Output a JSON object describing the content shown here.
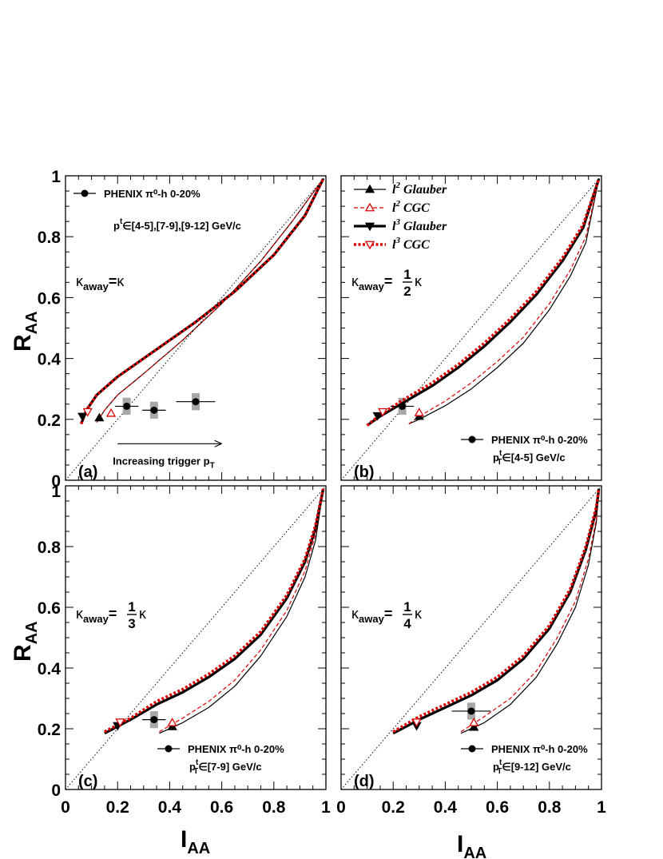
{
  "chart_data": [
    {
      "type": "line",
      "panel_label": "(a)",
      "kappa_text": "κ",
      "kappa_frac": null,
      "show_legend": false,
      "phenix_text": "PHENIX π⁰-h 0-20%",
      "pt_text": "∈[4-5],[7-9],[9-12] GeV/c",
      "arrow_text": "Increasing trigger p",
      "xlim": [
        0,
        1
      ],
      "ylim": [
        0,
        1
      ],
      "xticks": [
        "0",
        "0.2",
        "0.4",
        "0.6",
        "0.8",
        "1"
      ],
      "yticks": [
        "0",
        "0.2",
        "0.4",
        "0.6",
        "0.8",
        "1"
      ],
      "data_points": [
        {
          "x": 0.235,
          "y": 0.243,
          "xerr": 0.045,
          "yerr_sys": 0.028,
          "yerr_stat": 0.008
        },
        {
          "x": 0.34,
          "y": 0.23,
          "xerr": 0.045,
          "yerr_sys": 0.028,
          "yerr_stat": 0.008
        },
        {
          "x": 0.5,
          "y": 0.258,
          "xerr": 0.075,
          "yerr_sys": 0.028,
          "yerr_stat": 0.008
        }
      ],
      "series": [
        {
          "name": "l² Glauber",
          "x": [
            0.12,
            0.15,
            0.2,
            0.3,
            0.45,
            0.6,
            0.75,
            0.87,
            0.99
          ],
          "y": [
            0.19,
            0.23,
            0.28,
            0.35,
            0.46,
            0.58,
            0.72,
            0.85,
            0.99
          ],
          "marker_x": 0.13,
          "marker_y": 0.205
        },
        {
          "name": "l² CGC",
          "x": [
            0.12,
            0.15,
            0.2,
            0.3,
            0.45,
            0.6,
            0.75,
            0.87,
            0.99
          ],
          "y": [
            0.19,
            0.23,
            0.28,
            0.35,
            0.46,
            0.58,
            0.72,
            0.85,
            0.99
          ],
          "marker_x": 0.175,
          "marker_y": 0.22
        },
        {
          "name": "l³ Glauber",
          "x": [
            0.06,
            0.08,
            0.12,
            0.2,
            0.35,
            0.5,
            0.65,
            0.8,
            0.92,
            0.99
          ],
          "y": [
            0.185,
            0.23,
            0.28,
            0.34,
            0.43,
            0.52,
            0.62,
            0.74,
            0.87,
            0.99
          ],
          "marker_x": 0.065,
          "marker_y": 0.21
        },
        {
          "name": "l³ CGC",
          "x": [
            0.06,
            0.08,
            0.12,
            0.2,
            0.35,
            0.5,
            0.65,
            0.8,
            0.92,
            0.99
          ],
          "y": [
            0.185,
            0.23,
            0.28,
            0.34,
            0.43,
            0.52,
            0.62,
            0.74,
            0.87,
            0.99
          ],
          "marker_x": 0.085,
          "marker_y": 0.225
        }
      ]
    },
    {
      "type": "line",
      "panel_label": "(b)",
      "kappa_text": "κ",
      "kappa_frac": [
        "1",
        "2"
      ],
      "show_legend": true,
      "phenix_text": "PHENIX π⁰-h 0-20%",
      "pt_text": "∈[4-5] GeV/c",
      "arrow_text": "",
      "xlim": [
        0,
        1
      ],
      "ylim": [
        0,
        1
      ],
      "xticks": [
        "0",
        "0.2",
        "0.4",
        "0.6",
        "0.8",
        "1"
      ],
      "yticks": [
        "0",
        "0.2",
        "0.4",
        "0.6",
        "0.8",
        "1"
      ],
      "data_points": [
        {
          "x": 0.235,
          "y": 0.243,
          "xerr": 0.045,
          "yerr_sys": 0.028,
          "yerr_stat": 0.008
        }
      ],
      "series": [
        {
          "name": "l² Glauber",
          "x": [
            0.26,
            0.3,
            0.4,
            0.5,
            0.6,
            0.7,
            0.8,
            0.88,
            0.94,
            0.99
          ],
          "y": [
            0.185,
            0.2,
            0.245,
            0.3,
            0.37,
            0.45,
            0.56,
            0.67,
            0.78,
            0.99
          ],
          "marker_x": 0.3,
          "marker_y": 0.21
        },
        {
          "name": "l² CGC",
          "x": [
            0.26,
            0.3,
            0.4,
            0.5,
            0.6,
            0.7,
            0.8,
            0.88,
            0.94,
            0.99
          ],
          "y": [
            0.185,
            0.21,
            0.26,
            0.32,
            0.39,
            0.47,
            0.58,
            0.69,
            0.8,
            0.99
          ],
          "marker_x": 0.3,
          "marker_y": 0.222
        },
        {
          "name": "l³ Glauber",
          "x": [
            0.1,
            0.15,
            0.25,
            0.35,
            0.45,
            0.55,
            0.65,
            0.75,
            0.85,
            0.93,
            0.99
          ],
          "y": [
            0.18,
            0.21,
            0.26,
            0.31,
            0.37,
            0.44,
            0.52,
            0.61,
            0.72,
            0.83,
            0.99
          ],
          "marker_x": 0.14,
          "marker_y": 0.212
        },
        {
          "name": "l³ CGC",
          "x": [
            0.1,
            0.15,
            0.25,
            0.35,
            0.45,
            0.55,
            0.65,
            0.75,
            0.85,
            0.93,
            0.99
          ],
          "y": [
            0.18,
            0.215,
            0.27,
            0.32,
            0.38,
            0.45,
            0.53,
            0.62,
            0.73,
            0.84,
            0.99
          ],
          "marker_x": 0.16,
          "marker_y": 0.225
        }
      ]
    },
    {
      "type": "line",
      "panel_label": "(c)",
      "kappa_text": "κ",
      "kappa_frac": [
        "1",
        "3"
      ],
      "show_legend": false,
      "phenix_text": "PHENIX π⁰-h 0-20%",
      "pt_text": "∈[7-9] GeV/c",
      "arrow_text": "",
      "xlim": [
        0,
        1
      ],
      "ylim": [
        0,
        1
      ],
      "xticks": [
        "0",
        "0.2",
        "0.4",
        "0.6",
        "0.8",
        "1"
      ],
      "yticks": [
        "0",
        "0.2",
        "0.4",
        "0.6",
        "0.8",
        "1"
      ],
      "data_points": [
        {
          "x": 0.34,
          "y": 0.23,
          "xerr": 0.045,
          "yerr_sys": 0.028,
          "yerr_stat": 0.008
        }
      ],
      "series": [
        {
          "name": "l² Glauber",
          "x": [
            0.36,
            0.45,
            0.55,
            0.65,
            0.75,
            0.85,
            0.92,
            0.96,
            0.99
          ],
          "y": [
            0.185,
            0.22,
            0.27,
            0.34,
            0.44,
            0.57,
            0.7,
            0.82,
            0.99
          ],
          "marker_x": 0.41,
          "marker_y": 0.207
        },
        {
          "name": "l² CGC",
          "x": [
            0.36,
            0.45,
            0.55,
            0.65,
            0.75,
            0.85,
            0.92,
            0.96,
            0.99
          ],
          "y": [
            0.19,
            0.235,
            0.29,
            0.36,
            0.46,
            0.59,
            0.72,
            0.84,
            0.99
          ],
          "marker_x": 0.41,
          "marker_y": 0.22
        },
        {
          "name": "l³ Glauber",
          "x": [
            0.15,
            0.25,
            0.35,
            0.45,
            0.55,
            0.65,
            0.75,
            0.85,
            0.92,
            0.96,
            0.99
          ],
          "y": [
            0.185,
            0.23,
            0.28,
            0.32,
            0.37,
            0.43,
            0.51,
            0.63,
            0.75,
            0.86,
            0.99
          ],
          "marker_x": 0.2,
          "marker_y": 0.21
        },
        {
          "name": "l³ CGC",
          "x": [
            0.15,
            0.25,
            0.35,
            0.45,
            0.55,
            0.65,
            0.75,
            0.85,
            0.92,
            0.96,
            0.99
          ],
          "y": [
            0.19,
            0.235,
            0.29,
            0.33,
            0.38,
            0.44,
            0.52,
            0.64,
            0.76,
            0.87,
            0.99
          ],
          "marker_x": 0.21,
          "marker_y": 0.222
        }
      ]
    },
    {
      "type": "line",
      "panel_label": "(d)",
      "kappa_text": "κ",
      "kappa_frac": [
        "1",
        "4"
      ],
      "show_legend": false,
      "phenix_text": "PHENIX π⁰-h 0-20%",
      "pt_text": "∈[9-12] GeV/c",
      "arrow_text": "",
      "xlim": [
        0,
        1
      ],
      "ylim": [
        0,
        1
      ],
      "xticks": [
        "0",
        "0.2",
        "0.4",
        "0.6",
        "0.8",
        "1"
      ],
      "yticks": [
        "0",
        "0.2",
        "0.4",
        "0.6",
        "0.8",
        "1"
      ],
      "data_points": [
        {
          "x": 0.5,
          "y": 0.258,
          "xerr": 0.075,
          "yerr_sys": 0.028,
          "yerr_stat": 0.008
        }
      ],
      "series": [
        {
          "name": "l² Glauber",
          "x": [
            0.46,
            0.55,
            0.65,
            0.75,
            0.83,
            0.9,
            0.95,
            0.98,
            0.99
          ],
          "y": [
            0.185,
            0.22,
            0.28,
            0.37,
            0.48,
            0.6,
            0.74,
            0.88,
            0.99
          ],
          "marker_x": 0.51,
          "marker_y": 0.205
        },
        {
          "name": "l² CGC",
          "x": [
            0.46,
            0.55,
            0.65,
            0.75,
            0.83,
            0.9,
            0.95,
            0.98,
            0.99
          ],
          "y": [
            0.19,
            0.24,
            0.3,
            0.39,
            0.5,
            0.62,
            0.76,
            0.89,
            0.99
          ],
          "marker_x": 0.51,
          "marker_y": 0.22
        },
        {
          "name": "l³ Glauber",
          "x": [
            0.2,
            0.3,
            0.4,
            0.5,
            0.6,
            0.7,
            0.8,
            0.88,
            0.94,
            0.98,
            0.99
          ],
          "y": [
            0.185,
            0.23,
            0.27,
            0.31,
            0.36,
            0.43,
            0.53,
            0.65,
            0.79,
            0.92,
            0.99
          ],
          "marker_x": 0.29,
          "marker_y": 0.21
        },
        {
          "name": "l³ CGC",
          "x": [
            0.2,
            0.3,
            0.4,
            0.5,
            0.6,
            0.7,
            0.8,
            0.88,
            0.94,
            0.98,
            0.99
          ],
          "y": [
            0.19,
            0.24,
            0.28,
            0.32,
            0.37,
            0.44,
            0.54,
            0.66,
            0.8,
            0.93,
            0.99
          ],
          "marker_x": 0.29,
          "marker_y": 0.222
        }
      ]
    }
  ],
  "axes": {
    "x_label": "I",
    "x_label_sub": "AA",
    "y_label": "R",
    "y_label_sub": "AA",
    "kappa_prefix": "κ",
    "kappa_sub": "away",
    "pt_prefix": "p",
    "pt_sup": "t",
    "pt_sub": "T",
    "arrow_sub": "T"
  },
  "legend": [
    {
      "label": "l",
      "sup": "2",
      "rest": " Glauber",
      "color": "#000000",
      "style": "solid-thin",
      "marker": "triangle-up-filled"
    },
    {
      "label": "l",
      "sup": "2",
      "rest": " CGC",
      "color": "#dd0000",
      "style": "dashed-thin",
      "marker": "triangle-up-open"
    },
    {
      "label": "l",
      "sup": "3",
      "rest": " Glauber",
      "color": "#000000",
      "style": "solid-thick",
      "marker": "triangle-down-filled"
    },
    {
      "label": "l",
      "sup": "3",
      "rest": " CGC",
      "color": "#dd0000",
      "style": "dotted-thick",
      "marker": "triangle-down-open"
    }
  ],
  "colors": {
    "red": "#dd0000",
    "black": "#000000",
    "syserr": "#a8a8a8"
  }
}
